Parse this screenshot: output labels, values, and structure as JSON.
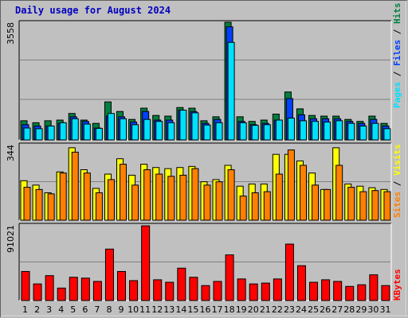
{
  "window": {
    "title": "Daily usage for August 2024"
  },
  "colors": {
    "background": "#c0c0c0",
    "border": "#606060",
    "hits": "#008040",
    "files": "#0040ff",
    "pages": "#00e0ff",
    "visits": "#ffff00",
    "sites": "#ff8000",
    "kbytes": "#ff0000",
    "title": "#0000c0",
    "weekend_day": "#008040"
  },
  "legend": {
    "pages": "Pages",
    "files": "Files",
    "hits": "Hits",
    "sites": "Sites",
    "visits": "Visits",
    "kbytes": "KBytes",
    "sep1": " / ",
    "sep2": " / "
  },
  "chart_data": [
    {
      "type": "bar",
      "panel": "hits-files-pages",
      "ymax_label": "3558",
      "ylim": [
        0,
        3558
      ],
      "x": [
        "1",
        "2",
        "3",
        "4",
        "5",
        "6",
        "7",
        "8",
        "9",
        "10",
        "11",
        "12",
        "13",
        "14",
        "15",
        "16",
        "17",
        "18",
        "19",
        "20",
        "21",
        "22",
        "23",
        "24",
        "25",
        "26",
        "27",
        "28",
        "29",
        "30",
        "31"
      ],
      "series": [
        {
          "name": "Hits",
          "values": [
            580,
            520,
            580,
            600,
            800,
            600,
            500,
            1150,
            860,
            620,
            960,
            740,
            720,
            980,
            960,
            580,
            700,
            3558,
            700,
            560,
            600,
            780,
            1450,
            940,
            740,
            720,
            720,
            620,
            560,
            720,
            500
          ]
        },
        {
          "name": "Files",
          "values": [
            460,
            420,
            420,
            500,
            700,
            560,
            360,
            720,
            700,
            540,
            860,
            600,
            600,
            900,
            860,
            500,
            620,
            3420,
            560,
            460,
            500,
            600,
            1250,
            760,
            640,
            640,
            640,
            560,
            500,
            620,
            420
          ]
        },
        {
          "name": "Pages",
          "values": [
            360,
            340,
            420,
            520,
            640,
            480,
            350,
            800,
            640,
            460,
            620,
            560,
            520,
            900,
            820,
            450,
            520,
            2950,
            520,
            440,
            460,
            600,
            660,
            580,
            560,
            540,
            580,
            500,
            420,
            500,
            340
          ]
        }
      ]
    },
    {
      "type": "bar",
      "panel": "visits-sites",
      "ymax_label": "344",
      "ylim": [
        0,
        344
      ],
      "x": [
        "1",
        "2",
        "3",
        "4",
        "5",
        "6",
        "7",
        "8",
        "9",
        "10",
        "11",
        "12",
        "13",
        "14",
        "15",
        "16",
        "17",
        "18",
        "19",
        "20",
        "21",
        "22",
        "23",
        "24",
        "25",
        "26",
        "27",
        "28",
        "29",
        "30",
        "31"
      ],
      "series": [
        {
          "name": "Visits",
          "values": [
            180,
            160,
            125,
            220,
            330,
            230,
            145,
            210,
            280,
            205,
            255,
            240,
            235,
            240,
            245,
            175,
            185,
            250,
            155,
            165,
            165,
            300,
            300,
            270,
            215,
            140,
            330,
            165,
            155,
            148,
            140
          ]
        },
        {
          "name": "Sites",
          "values": [
            150,
            140,
            120,
            215,
            310,
            215,
            125,
            185,
            255,
            160,
            230,
            210,
            200,
            205,
            235,
            160,
            175,
            230,
            110,
            125,
            130,
            210,
            320,
            250,
            160,
            140,
            250,
            150,
            130,
            135,
            130
          ]
        }
      ]
    },
    {
      "type": "bar",
      "panel": "kbytes",
      "ymax_label": "91021",
      "ylim": [
        0,
        91021
      ],
      "x": [
        "1",
        "2",
        "3",
        "4",
        "5",
        "6",
        "7",
        "8",
        "9",
        "10",
        "11",
        "12",
        "13",
        "14",
        "15",
        "16",
        "17",
        "18",
        "19",
        "20",
        "21",
        "22",
        "23",
        "24",
        "25",
        "26",
        "27",
        "28",
        "29",
        "30",
        "31"
      ],
      "series": [
        {
          "name": "KBytes",
          "values": [
            35000,
            20000,
            30000,
            15000,
            28000,
            27000,
            23000,
            62000,
            35000,
            24000,
            90000,
            25000,
            22000,
            39000,
            28000,
            18000,
            23000,
            55000,
            26000,
            20000,
            21000,
            26000,
            68000,
            42000,
            22000,
            25000,
            23000,
            17000,
            19000,
            31000,
            18000
          ]
        }
      ]
    }
  ],
  "weekend_days": [
    "3",
    "4",
    "10",
    "11",
    "17",
    "18",
    "24",
    "25",
    "31"
  ]
}
